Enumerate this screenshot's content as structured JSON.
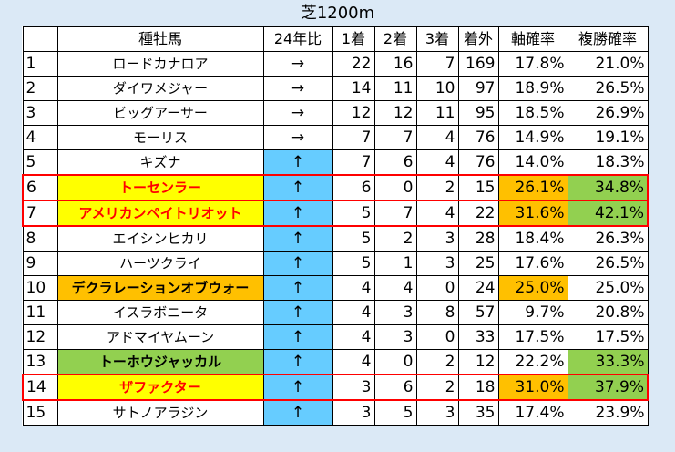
{
  "title": "芝1200m",
  "headers": [
    "",
    "種牡馬",
    "24年比",
    "1着",
    "2着",
    "3着",
    "着外",
    "軸確率",
    "複勝確率"
  ],
  "rows": [
    {
      "rank": "1",
      "name": "ロードカナロア",
      "trend": "→",
      "first": "22",
      "second": "16",
      "third": "7",
      "out": "169",
      "axis": "17.8%",
      "place": "21.0%",
      "name_hl": "",
      "trend_hl": false,
      "axis_hl": "",
      "place_hl": "",
      "boxed": false
    },
    {
      "rank": "2",
      "name": "ダイワメジャー",
      "trend": "→",
      "first": "14",
      "second": "11",
      "third": "10",
      "out": "97",
      "axis": "18.9%",
      "place": "26.5%",
      "name_hl": "",
      "trend_hl": false,
      "axis_hl": "",
      "place_hl": "",
      "boxed": false
    },
    {
      "rank": "3",
      "name": "ビッグアーサー",
      "trend": "→",
      "first": "12",
      "second": "12",
      "third": "11",
      "out": "95",
      "axis": "18.5%",
      "place": "26.9%",
      "name_hl": "",
      "trend_hl": false,
      "axis_hl": "",
      "place_hl": "",
      "boxed": false
    },
    {
      "rank": "4",
      "name": "モーリス",
      "trend": "→",
      "first": "7",
      "second": "7",
      "third": "4",
      "out": "76",
      "axis": "14.9%",
      "place": "19.1%",
      "name_hl": "",
      "trend_hl": false,
      "axis_hl": "",
      "place_hl": "",
      "boxed": false
    },
    {
      "rank": "5",
      "name": "キズナ",
      "trend": "↑",
      "first": "7",
      "second": "6",
      "third": "4",
      "out": "76",
      "axis": "14.0%",
      "place": "18.3%",
      "name_hl": "",
      "trend_hl": true,
      "axis_hl": "",
      "place_hl": "",
      "boxed": false
    },
    {
      "rank": "6",
      "name": "トーセンラー",
      "trend": "↑",
      "first": "6",
      "second": "0",
      "third": "2",
      "out": "15",
      "axis": "26.1%",
      "place": "34.8%",
      "name_hl": "yellow",
      "trend_hl": true,
      "axis_hl": "orange",
      "place_hl": "green",
      "boxed": true
    },
    {
      "rank": "7",
      "name": "アメリカンペイトリオット",
      "trend": "↑",
      "first": "5",
      "second": "7",
      "third": "4",
      "out": "22",
      "axis": "31.6%",
      "place": "42.1%",
      "name_hl": "yellow",
      "trend_hl": true,
      "axis_hl": "orange",
      "place_hl": "green",
      "boxed": true
    },
    {
      "rank": "8",
      "name": "エイシンヒカリ",
      "trend": "↑",
      "first": "5",
      "second": "2",
      "third": "3",
      "out": "28",
      "axis": "18.4%",
      "place": "26.3%",
      "name_hl": "",
      "trend_hl": true,
      "axis_hl": "",
      "place_hl": "",
      "boxed": false
    },
    {
      "rank": "9",
      "name": "ハーツクライ",
      "trend": "↑",
      "first": "5",
      "second": "1",
      "third": "3",
      "out": "25",
      "axis": "17.6%",
      "place": "26.5%",
      "name_hl": "",
      "trend_hl": true,
      "axis_hl": "",
      "place_hl": "",
      "boxed": false
    },
    {
      "rank": "10",
      "name": "デクラレーションオブウォー",
      "trend": "↑",
      "first": "4",
      "second": "4",
      "third": "0",
      "out": "24",
      "axis": "25.0%",
      "place": "25.0%",
      "name_hl": "orange",
      "trend_hl": true,
      "axis_hl": "orange",
      "place_hl": "",
      "boxed": false
    },
    {
      "rank": "11",
      "name": "イスラボニータ",
      "trend": "↑",
      "first": "4",
      "second": "3",
      "third": "8",
      "out": "57",
      "axis": "9.7%",
      "place": "20.8%",
      "name_hl": "",
      "trend_hl": true,
      "axis_hl": "",
      "place_hl": "",
      "boxed": false
    },
    {
      "rank": "12",
      "name": "アドマイヤムーン",
      "trend": "↑",
      "first": "4",
      "second": "3",
      "third": "0",
      "out": "33",
      "axis": "17.5%",
      "place": "17.5%",
      "name_hl": "",
      "trend_hl": true,
      "axis_hl": "",
      "place_hl": "",
      "boxed": false
    },
    {
      "rank": "13",
      "name": "トーホウジャッカル",
      "trend": "↑",
      "first": "4",
      "second": "0",
      "third": "2",
      "out": "12",
      "axis": "22.2%",
      "place": "33.3%",
      "name_hl": "green",
      "trend_hl": true,
      "axis_hl": "",
      "place_hl": "green",
      "boxed": false
    },
    {
      "rank": "14",
      "name": "ザファクター",
      "trend": "↑",
      "first": "3",
      "second": "6",
      "third": "2",
      "out": "18",
      "axis": "31.0%",
      "place": "37.9%",
      "name_hl": "yellow",
      "trend_hl": true,
      "axis_hl": "orange",
      "place_hl": "green",
      "boxed": true
    },
    {
      "rank": "15",
      "name": "サトノアラジン",
      "trend": "↑",
      "first": "3",
      "second": "5",
      "third": "3",
      "out": "35",
      "axis": "17.4%",
      "place": "23.9%",
      "name_hl": "",
      "trend_hl": true,
      "axis_hl": "",
      "place_hl": "",
      "boxed": false
    }
  ]
}
